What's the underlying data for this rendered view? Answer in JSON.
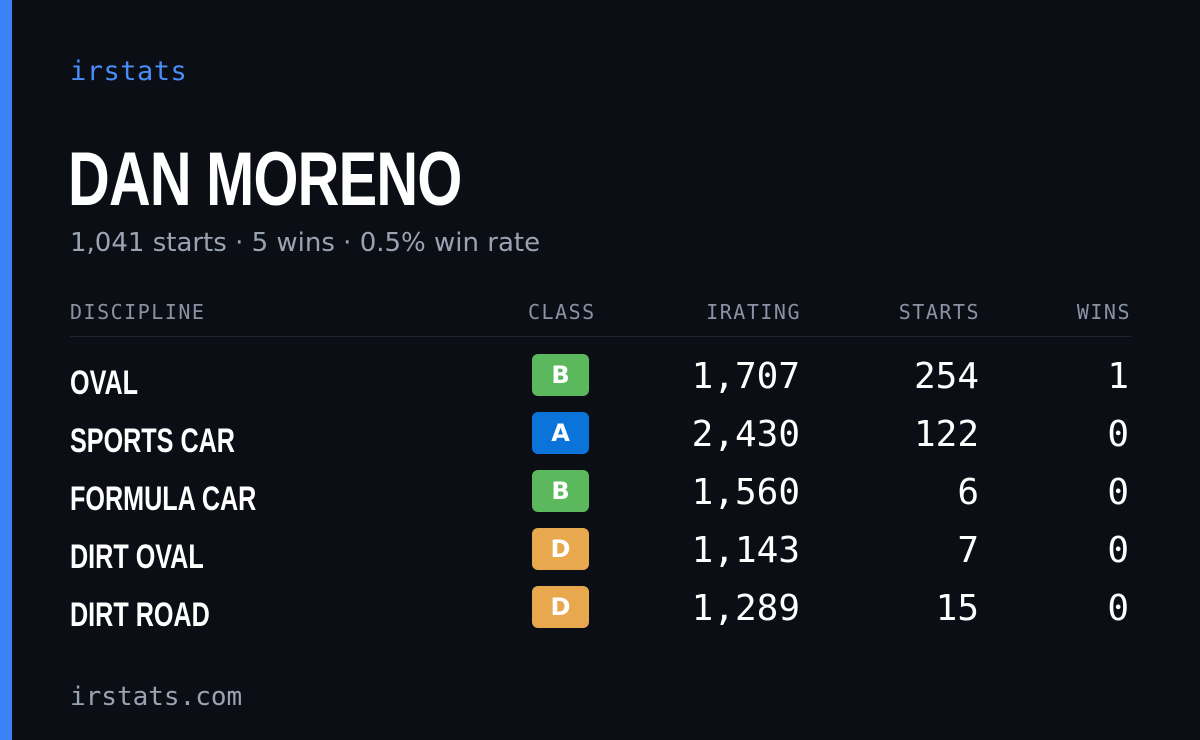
{
  "brand": "irstats",
  "player": {
    "name": "DAN MORENO",
    "summary": "1,041 starts · 5 wins · 0.5% win rate"
  },
  "table": {
    "columns": {
      "discipline": "DISCIPLINE",
      "class": "CLASS",
      "irating": "IRATING",
      "starts": "STARTS",
      "wins": "WINS"
    },
    "rows": [
      {
        "discipline": "OVAL",
        "class": "B",
        "class_color": "#5cb85c",
        "irating": "1,707",
        "starts": "254",
        "wins": "1"
      },
      {
        "discipline": "SPORTS CAR",
        "class": "A",
        "class_color": "#0a74da",
        "irating": "2,430",
        "starts": "122",
        "wins": "0"
      },
      {
        "discipline": "FORMULA CAR",
        "class": "B",
        "class_color": "#5cb85c",
        "irating": "1,560",
        "starts": "6",
        "wins": "0"
      },
      {
        "discipline": "DIRT OVAL",
        "class": "D",
        "class_color": "#e8a94e",
        "irating": "1,143",
        "starts": "7",
        "wins": "0"
      },
      {
        "discipline": "DIRT ROAD",
        "class": "D",
        "class_color": "#e8a94e",
        "irating": "1,289",
        "starts": "15",
        "wins": "0"
      }
    ]
  },
  "footer": {
    "url": "irstats.com"
  },
  "colors": {
    "background": "#0b0e15",
    "accent": "#3b82f6",
    "brand": "#4a8df6",
    "text": "#ffffff",
    "muted": "#9aa3b2"
  }
}
